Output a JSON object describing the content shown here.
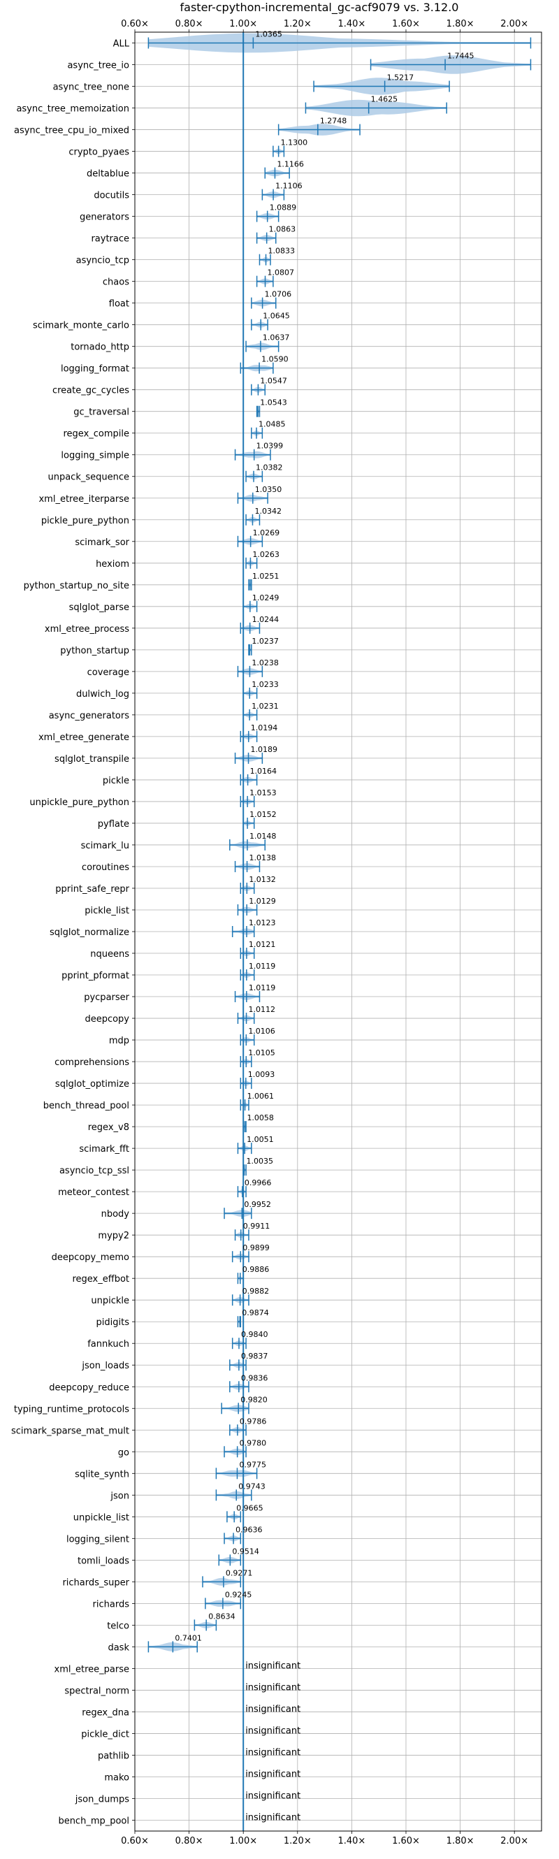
{
  "chart_data": {
    "type": "violin",
    "title": "faster-cpython-incremental_gc-acf9079 vs. 3.12.0",
    "xlabel": "",
    "ylabel": "",
    "xlim": [
      0.6,
      2.1
    ],
    "x_ticks": [
      0.6,
      0.8,
      1.0,
      1.2,
      1.4,
      1.6,
      1.8,
      2.0
    ],
    "x_tick_labels": [
      "0.60×",
      "0.80×",
      "1.00×",
      "1.20×",
      "1.40×",
      "1.60×",
      "1.80×",
      "2.00×"
    ],
    "reference_line": 1.0,
    "grid": true,
    "accent_color": "#1f77b4",
    "violin_color": "#aecbe6",
    "insignificant_label": "insignificant",
    "benchmarks": [
      {
        "name": "ALL",
        "median": 1.0365,
        "label": "1.0365",
        "min": 0.65,
        "max": 2.06
      },
      {
        "name": "async_tree_io",
        "median": 1.7445,
        "label": "1.7445",
        "min": 1.47,
        "max": 2.06
      },
      {
        "name": "async_tree_none",
        "median": 1.5217,
        "label": "1.5217",
        "min": 1.26,
        "max": 1.76
      },
      {
        "name": "async_tree_memoization",
        "median": 1.4625,
        "label": "1.4625",
        "min": 1.23,
        "max": 1.75
      },
      {
        "name": "async_tree_cpu_io_mixed",
        "median": 1.2748,
        "label": "1.2748",
        "min": 1.13,
        "max": 1.43
      },
      {
        "name": "crypto_pyaes",
        "median": 1.13,
        "label": "1.1300",
        "min": 1.11,
        "max": 1.15
      },
      {
        "name": "deltablue",
        "median": 1.1166,
        "label": "1.1166",
        "min": 1.08,
        "max": 1.17
      },
      {
        "name": "docutils",
        "median": 1.1106,
        "label": "1.1106",
        "min": 1.07,
        "max": 1.15
      },
      {
        "name": "generators",
        "median": 1.0889,
        "label": "1.0889",
        "min": 1.05,
        "max": 1.13
      },
      {
        "name": "raytrace",
        "median": 1.0863,
        "label": "1.0863",
        "min": 1.05,
        "max": 1.12
      },
      {
        "name": "asyncio_tcp",
        "median": 1.0833,
        "label": "1.0833",
        "min": 1.06,
        "max": 1.1
      },
      {
        "name": "chaos",
        "median": 1.0807,
        "label": "1.0807",
        "min": 1.05,
        "max": 1.11
      },
      {
        "name": "float",
        "median": 1.0706,
        "label": "1.0706",
        "min": 1.03,
        "max": 1.12
      },
      {
        "name": "scimark_monte_carlo",
        "median": 1.0645,
        "label": "1.0645",
        "min": 1.03,
        "max": 1.09
      },
      {
        "name": "tornado_http",
        "median": 1.0637,
        "label": "1.0637",
        "min": 1.01,
        "max": 1.13
      },
      {
        "name": "logging_format",
        "median": 1.059,
        "label": "1.0590",
        "min": 0.99,
        "max": 1.11
      },
      {
        "name": "create_gc_cycles",
        "median": 1.0547,
        "label": "1.0547",
        "min": 1.03,
        "max": 1.08
      },
      {
        "name": "gc_traversal",
        "median": 1.0543,
        "label": "1.0543",
        "min": 1.05,
        "max": 1.06
      },
      {
        "name": "regex_compile",
        "median": 1.0485,
        "label": "1.0485",
        "min": 1.03,
        "max": 1.07
      },
      {
        "name": "logging_simple",
        "median": 1.0399,
        "label": "1.0399",
        "min": 0.97,
        "max": 1.1
      },
      {
        "name": "unpack_sequence",
        "median": 1.0382,
        "label": "1.0382",
        "min": 1.01,
        "max": 1.07
      },
      {
        "name": "xml_etree_iterparse",
        "median": 1.035,
        "label": "1.0350",
        "min": 0.98,
        "max": 1.09
      },
      {
        "name": "pickle_pure_python",
        "median": 1.0342,
        "label": "1.0342",
        "min": 1.01,
        "max": 1.06
      },
      {
        "name": "scimark_sor",
        "median": 1.0269,
        "label": "1.0269",
        "min": 0.98,
        "max": 1.07
      },
      {
        "name": "hexiom",
        "median": 1.0263,
        "label": "1.0263",
        "min": 1.01,
        "max": 1.05
      },
      {
        "name": "python_startup_no_site",
        "median": 1.0251,
        "label": "1.0251",
        "min": 1.02,
        "max": 1.03
      },
      {
        "name": "sqlglot_parse",
        "median": 1.0249,
        "label": "1.0249",
        "min": 1.0,
        "max": 1.05
      },
      {
        "name": "xml_etree_process",
        "median": 1.0244,
        "label": "1.0244",
        "min": 0.99,
        "max": 1.06
      },
      {
        "name": "python_startup",
        "median": 1.0237,
        "label": "1.0237",
        "min": 1.02,
        "max": 1.03
      },
      {
        "name": "coverage",
        "median": 1.0238,
        "label": "1.0238",
        "min": 0.98,
        "max": 1.07
      },
      {
        "name": "dulwich_log",
        "median": 1.0233,
        "label": "1.0233",
        "min": 1.0,
        "max": 1.05
      },
      {
        "name": "async_generators",
        "median": 1.0231,
        "label": "1.0231",
        "min": 1.0,
        "max": 1.05
      },
      {
        "name": "xml_etree_generate",
        "median": 1.0194,
        "label": "1.0194",
        "min": 0.99,
        "max": 1.05
      },
      {
        "name": "sqlglot_transpile",
        "median": 1.0189,
        "label": "1.0189",
        "min": 0.97,
        "max": 1.07
      },
      {
        "name": "pickle",
        "median": 1.0164,
        "label": "1.0164",
        "min": 0.99,
        "max": 1.05
      },
      {
        "name": "unpickle_pure_python",
        "median": 1.0153,
        "label": "1.0153",
        "min": 0.99,
        "max": 1.04
      },
      {
        "name": "pyflate",
        "median": 1.0152,
        "label": "1.0152",
        "min": 1.0,
        "max": 1.04
      },
      {
        "name": "scimark_lu",
        "median": 1.0148,
        "label": "1.0148",
        "min": 0.95,
        "max": 1.08
      },
      {
        "name": "coroutines",
        "median": 1.0138,
        "label": "1.0138",
        "min": 0.97,
        "max": 1.06
      },
      {
        "name": "pprint_safe_repr",
        "median": 1.0132,
        "label": "1.0132",
        "min": 0.99,
        "max": 1.04
      },
      {
        "name": "pickle_list",
        "median": 1.0129,
        "label": "1.0129",
        "min": 0.98,
        "max": 1.05
      },
      {
        "name": "sqlglot_normalize",
        "median": 1.0123,
        "label": "1.0123",
        "min": 0.96,
        "max": 1.04
      },
      {
        "name": "nqueens",
        "median": 1.0121,
        "label": "1.0121",
        "min": 0.99,
        "max": 1.04
      },
      {
        "name": "pprint_pformat",
        "median": 1.0119,
        "label": "1.0119",
        "min": 0.99,
        "max": 1.04
      },
      {
        "name": "pycparser",
        "median": 1.0119,
        "label": "1.0119",
        "min": 0.97,
        "max": 1.06
      },
      {
        "name": "deepcopy",
        "median": 1.0112,
        "label": "1.0112",
        "min": 0.98,
        "max": 1.04
      },
      {
        "name": "mdp",
        "median": 1.0106,
        "label": "1.0106",
        "min": 0.99,
        "max": 1.04
      },
      {
        "name": "comprehensions",
        "median": 1.0105,
        "label": "1.0105",
        "min": 0.99,
        "max": 1.03
      },
      {
        "name": "sqlglot_optimize",
        "median": 1.0093,
        "label": "1.0093",
        "min": 0.99,
        "max": 1.03
      },
      {
        "name": "bench_thread_pool",
        "median": 1.0061,
        "label": "1.0061",
        "min": 0.99,
        "max": 1.02
      },
      {
        "name": "regex_v8",
        "median": 1.0058,
        "label": "1.0058",
        "min": 1.0,
        "max": 1.01
      },
      {
        "name": "scimark_fft",
        "median": 1.0051,
        "label": "1.0051",
        "min": 0.98,
        "max": 1.03
      },
      {
        "name": "asyncio_tcp_ssl",
        "median": 1.0035,
        "label": "1.0035",
        "min": 1.0,
        "max": 1.01
      },
      {
        "name": "meteor_contest",
        "median": 0.9966,
        "label": "0.9966",
        "min": 0.98,
        "max": 1.01
      },
      {
        "name": "nbody",
        "median": 0.9952,
        "label": "0.9952",
        "min": 0.93,
        "max": 1.03
      },
      {
        "name": "mypy2",
        "median": 0.9911,
        "label": "0.9911",
        "min": 0.97,
        "max": 1.02
      },
      {
        "name": "deepcopy_memo",
        "median": 0.9899,
        "label": "0.9899",
        "min": 0.96,
        "max": 1.02
      },
      {
        "name": "regex_effbot",
        "median": 0.9886,
        "label": "0.9886",
        "min": 0.98,
        "max": 1.0
      },
      {
        "name": "unpickle",
        "median": 0.9882,
        "label": "0.9882",
        "min": 0.96,
        "max": 1.02
      },
      {
        "name": "pidigits",
        "median": 0.9874,
        "label": "0.9874",
        "min": 0.98,
        "max": 0.99
      },
      {
        "name": "fannkuch",
        "median": 0.984,
        "label": "0.9840",
        "min": 0.96,
        "max": 1.01
      },
      {
        "name": "json_loads",
        "median": 0.9837,
        "label": "0.9837",
        "min": 0.95,
        "max": 1.01
      },
      {
        "name": "deepcopy_reduce",
        "median": 0.9836,
        "label": "0.9836",
        "min": 0.95,
        "max": 1.02
      },
      {
        "name": "typing_runtime_protocols",
        "median": 0.982,
        "label": "0.9820",
        "min": 0.92,
        "max": 1.02
      },
      {
        "name": "scimark_sparse_mat_mult",
        "median": 0.9786,
        "label": "0.9786",
        "min": 0.95,
        "max": 1.01
      },
      {
        "name": "go",
        "median": 0.978,
        "label": "0.9780",
        "min": 0.93,
        "max": 1.01
      },
      {
        "name": "sqlite_synth",
        "median": 0.9775,
        "label": "0.9775",
        "min": 0.9,
        "max": 1.05
      },
      {
        "name": "json",
        "median": 0.9743,
        "label": "0.9743",
        "min": 0.9,
        "max": 1.03
      },
      {
        "name": "unpickle_list",
        "median": 0.9665,
        "label": "0.9665",
        "min": 0.94,
        "max": 0.99
      },
      {
        "name": "logging_silent",
        "median": 0.9636,
        "label": "0.9636",
        "min": 0.93,
        "max": 0.99
      },
      {
        "name": "tomli_loads",
        "median": 0.9514,
        "label": "0.9514",
        "min": 0.91,
        "max": 0.99
      },
      {
        "name": "richards_super",
        "median": 0.9271,
        "label": "0.9271",
        "min": 0.85,
        "max": 0.99
      },
      {
        "name": "richards",
        "median": 0.9245,
        "label": "0.9245",
        "min": 0.86,
        "max": 0.99
      },
      {
        "name": "telco",
        "median": 0.8634,
        "label": "0.8634",
        "min": 0.82,
        "max": 0.9
      },
      {
        "name": "dask",
        "median": 0.7401,
        "label": "0.7401",
        "min": 0.65,
        "max": 0.83
      },
      {
        "name": "xml_etree_parse",
        "insignificant": true
      },
      {
        "name": "spectral_norm",
        "insignificant": true
      },
      {
        "name": "regex_dna",
        "insignificant": true
      },
      {
        "name": "pickle_dict",
        "insignificant": true
      },
      {
        "name": "pathlib",
        "insignificant": true
      },
      {
        "name": "mako",
        "insignificant": true
      },
      {
        "name": "json_dumps",
        "insignificant": true
      },
      {
        "name": "bench_mp_pool",
        "insignificant": true
      }
    ]
  }
}
